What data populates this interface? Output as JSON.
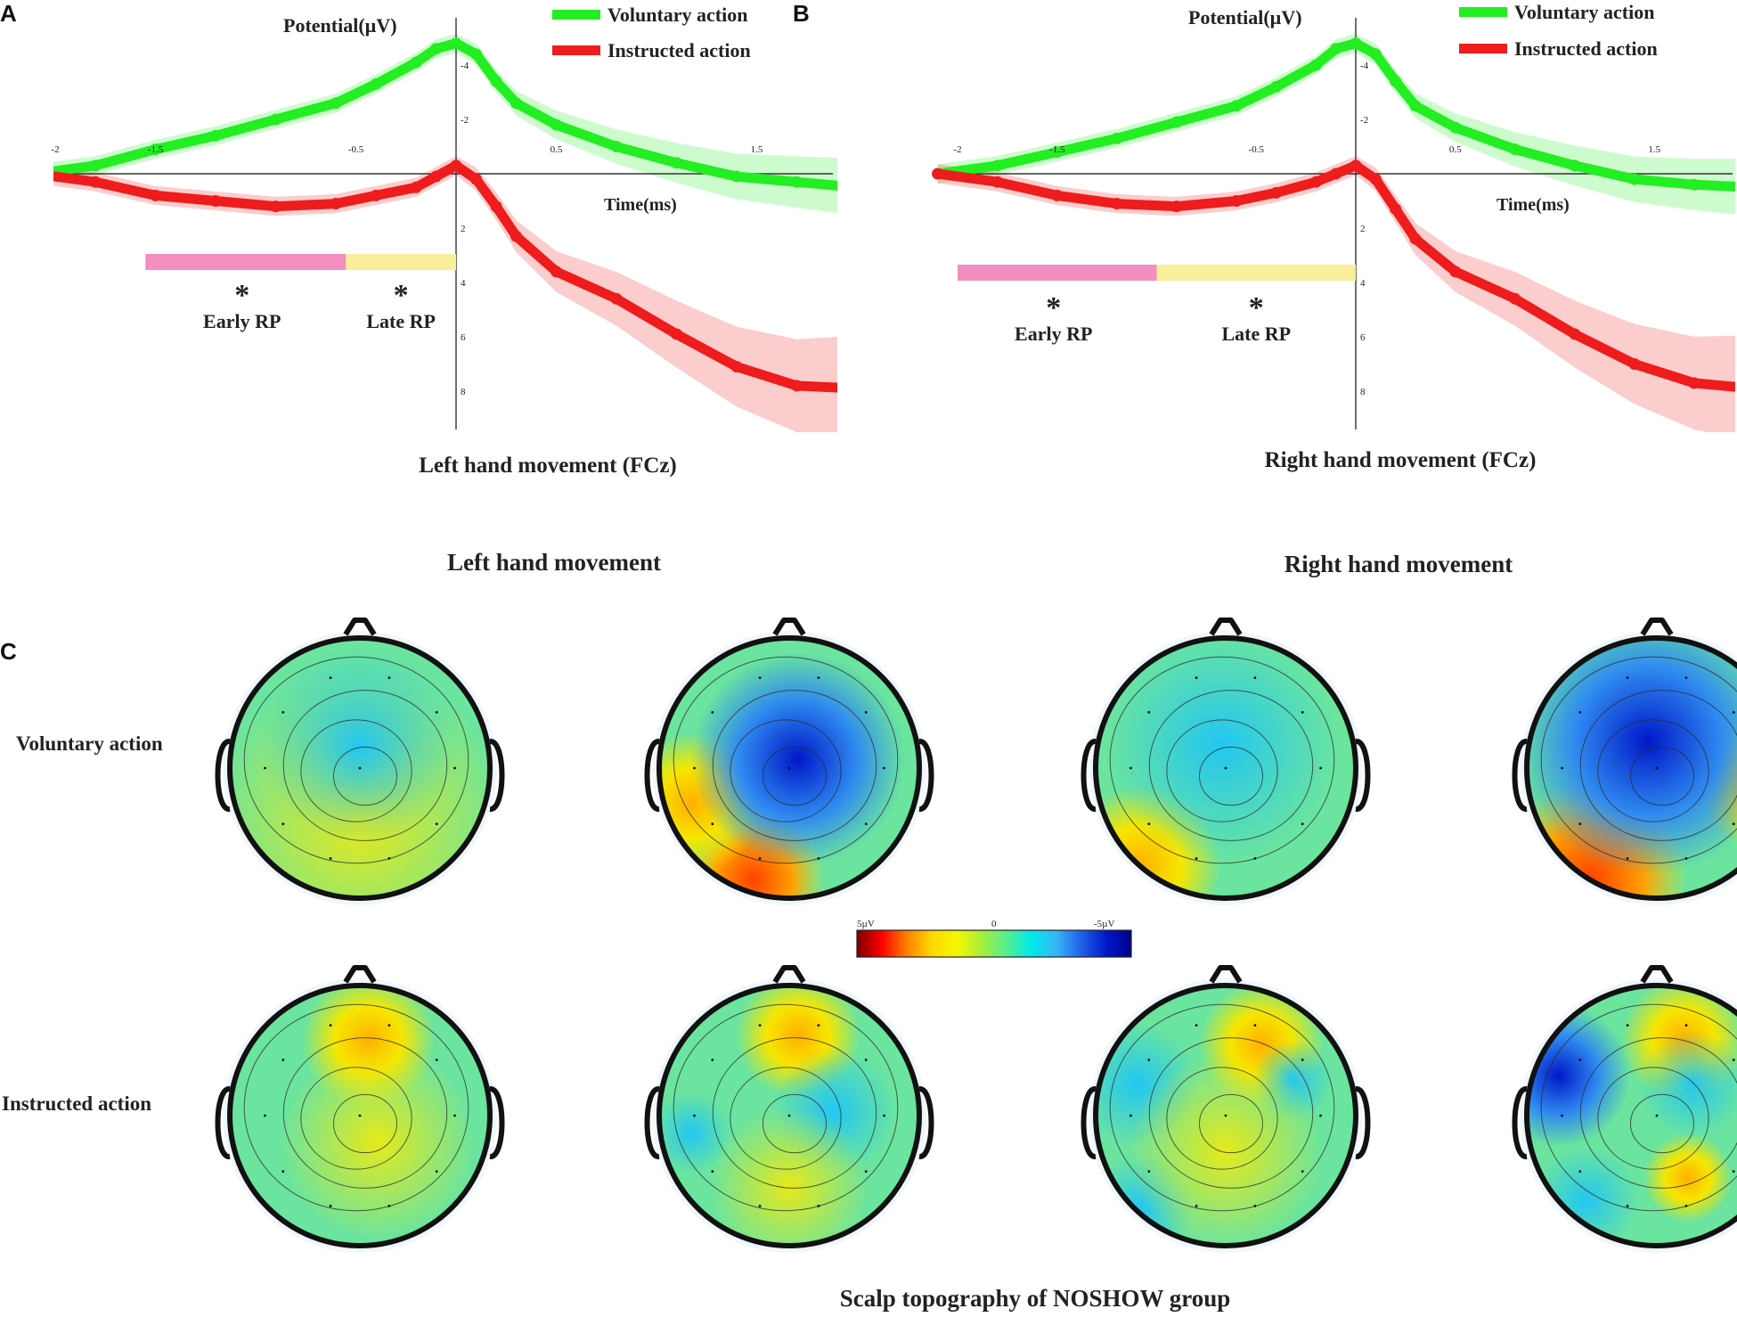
{
  "figure": {
    "scalp_title": "Scalp topography of NOSHOW group",
    "topo_col_headers": [
      "Left hand movement",
      "Right hand movement"
    ],
    "topo_row_labels": [
      "Voluntary action",
      "Instructed action"
    ],
    "colorbar": {
      "labels": [
        "5µV",
        "0",
        "-5µV"
      ],
      "colors": [
        "#7a0000",
        "#ff0000",
        "#ff8000",
        "#ffd800",
        "#f6f600",
        "#a8ee3a",
        "#55ef8f",
        "#00e9ec",
        "#38b5f5",
        "#2060e8",
        "#0018c8",
        "#00008a"
      ]
    },
    "panel_c_letter": "C",
    "colors": {
      "voluntary": "#22ee22",
      "instructed": "#ee1c1c",
      "early_rp": "#f28ec0",
      "late_rp": "#f8ee9c"
    }
  },
  "chart_data": [
    {
      "type": "line",
      "panel": "A",
      "title": "Left hand movement (FCz)",
      "ylabel": "Potential(µV)",
      "xlabel": "Time(ms)",
      "xlim": [
        -2.1,
        2.0
      ],
      "ylim": [
        -5,
        9.5
      ],
      "y_inverted": true,
      "x_ticks": [
        -2,
        -1.5,
        -0.5,
        0.5,
        1.5
      ],
      "x_tick_labels": [
        "-2",
        "-1.5",
        "-0.5",
        "0.5",
        "1.5"
      ],
      "y_ticks": [
        -4,
        -2,
        2,
        4,
        6,
        8
      ],
      "y_tick_labels": [
        "-4",
        "-2",
        "2",
        "4",
        "6",
        "8"
      ],
      "series": [
        {
          "name": "Voluntary action",
          "x": [
            -2.1,
            -1.8,
            -1.5,
            -1.2,
            -0.9,
            -0.6,
            -0.4,
            -0.2,
            -0.1,
            0.0,
            0.1,
            0.2,
            0.3,
            0.5,
            0.8,
            1.1,
            1.4,
            1.7,
            2.0
          ],
          "y": [
            0.0,
            -0.3,
            -0.9,
            -1.4,
            -2.0,
            -2.6,
            -3.3,
            -4.1,
            -4.6,
            -4.8,
            -4.4,
            -3.4,
            -2.6,
            -1.8,
            -1.0,
            -0.4,
            0.1,
            0.3,
            0.5
          ]
        },
        {
          "name": "Instructed action",
          "x": [
            -2.1,
            -1.8,
            -1.5,
            -1.2,
            -0.9,
            -0.6,
            -0.4,
            -0.2,
            -0.1,
            0.0,
            0.1,
            0.2,
            0.3,
            0.5,
            0.8,
            1.1,
            1.4,
            1.7,
            2.0
          ],
          "y": [
            0.0,
            0.3,
            0.8,
            1.0,
            1.2,
            1.1,
            0.8,
            0.5,
            0.1,
            -0.3,
            0.2,
            1.2,
            2.3,
            3.6,
            4.6,
            5.9,
            7.1,
            7.8,
            7.9
          ]
        }
      ],
      "annotations": [
        {
          "label": "Early RP",
          "marker": "*",
          "range": [
            -1.55,
            -0.55
          ]
        },
        {
          "label": "Late RP",
          "marker": "*",
          "range": [
            -0.55,
            0.0
          ]
        }
      ]
    },
    {
      "type": "line",
      "panel": "B",
      "title": "Right hand movement (FCz)",
      "ylabel": "Potential(µV)",
      "xlabel": "Time(ms)",
      "xlim": [
        -2.1,
        2.0
      ],
      "ylim": [
        -5,
        9.5
      ],
      "y_inverted": true,
      "x_ticks": [
        -2,
        -1.5,
        -0.5,
        0.5,
        1.5
      ],
      "x_tick_labels": [
        "-2",
        "-1.5",
        "-0.5",
        "0.5",
        "1.5"
      ],
      "y_ticks": [
        -4,
        -2,
        2,
        4,
        6,
        8
      ],
      "y_tick_labels": [
        "-4",
        "-2",
        "2",
        "4",
        "6",
        "8"
      ],
      "series": [
        {
          "name": "Voluntary action",
          "x": [
            -2.1,
            -1.8,
            -1.5,
            -1.2,
            -0.9,
            -0.6,
            -0.4,
            -0.2,
            -0.1,
            0.0,
            0.1,
            0.2,
            0.3,
            0.5,
            0.8,
            1.1,
            1.4,
            1.7,
            2.0
          ],
          "y": [
            0.0,
            -0.3,
            -0.8,
            -1.3,
            -1.9,
            -2.5,
            -3.2,
            -4.0,
            -4.6,
            -4.8,
            -4.4,
            -3.4,
            -2.5,
            -1.7,
            -0.9,
            -0.3,
            0.2,
            0.4,
            0.5
          ]
        },
        {
          "name": "Instructed action",
          "x": [
            -2.1,
            -1.8,
            -1.5,
            -1.2,
            -0.9,
            -0.6,
            -0.4,
            -0.2,
            -0.1,
            0.0,
            0.1,
            0.2,
            0.3,
            0.5,
            0.8,
            1.1,
            1.4,
            1.7,
            2.0
          ],
          "y": [
            0.0,
            0.3,
            0.8,
            1.1,
            1.2,
            1.0,
            0.7,
            0.3,
            0.0,
            -0.3,
            0.2,
            1.3,
            2.4,
            3.6,
            4.6,
            5.9,
            7.0,
            7.7,
            7.9
          ]
        }
      ],
      "annotations": [
        {
          "label": "Early RP",
          "marker": "*",
          "range": [
            -2.0,
            -1.0
          ]
        },
        {
          "label": "Late RP",
          "marker": "*",
          "range": [
            -1.0,
            0.0
          ]
        }
      ]
    }
  ]
}
